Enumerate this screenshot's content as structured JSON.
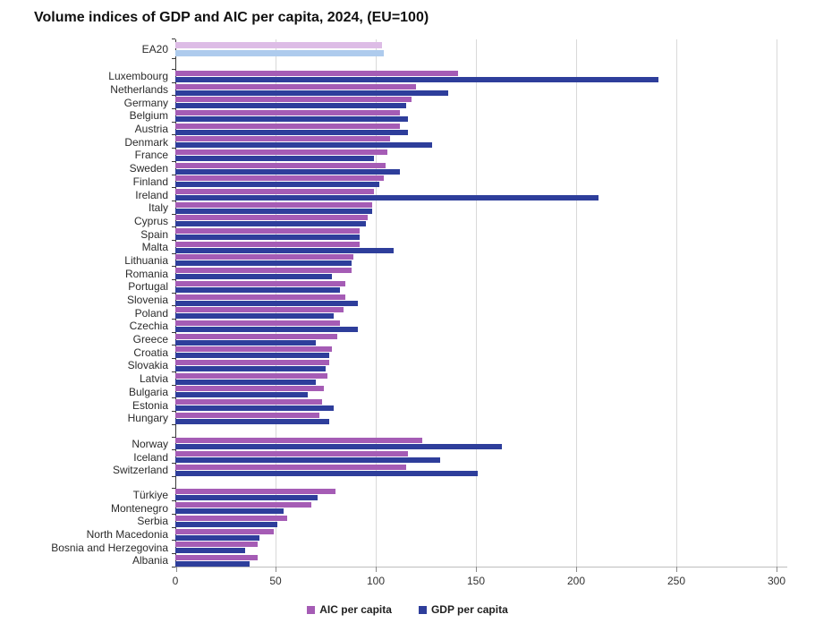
{
  "title": "Volume indices of GDP and AIC per capita, 2024, (EU=100)",
  "colors": {
    "aic": "#a55cb5",
    "gdp": "#2e3e9b",
    "ea20_aic": "#ddbce6",
    "ea20_gdp": "#aecbed",
    "gridline": "#d9d9d9",
    "axis": "#3a3a3a"
  },
  "legend": [
    {
      "label": "AIC per capita",
      "color": "#a55cb5"
    },
    {
      "label": "GDP per capita",
      "color": "#2e3e9b"
    }
  ],
  "chart_data": {
    "type": "bar",
    "orientation": "horizontal",
    "title": "Volume indices of GDP and AIC per capita, 2024, (EU=100)",
    "xlim": [
      0,
      300
    ],
    "xticks": [
      0,
      50,
      100,
      150,
      200,
      250,
      300
    ],
    "grid": "vertical-lines-at-ticks",
    "legend_position": "bottom-center",
    "series_names": [
      "AIC per capita",
      "GDP per capita"
    ],
    "groups": [
      {
        "name": "euro-area-aggregate",
        "rows": [
          {
            "label": "EA20",
            "aic": 103,
            "gdp": 104,
            "highlight": true
          }
        ]
      },
      {
        "name": "eu-countries",
        "rows": [
          {
            "label": "Luxembourg",
            "aic": 141,
            "gdp": 241
          },
          {
            "label": "Netherlands",
            "aic": 120,
            "gdp": 136
          },
          {
            "label": "Germany",
            "aic": 118,
            "gdp": 115
          },
          {
            "label": "Belgium",
            "aic": 112,
            "gdp": 116
          },
          {
            "label": "Austria",
            "aic": 112,
            "gdp": 116
          },
          {
            "label": "Denmark",
            "aic": 107,
            "gdp": 128
          },
          {
            "label": "France",
            "aic": 106,
            "gdp": 99
          },
          {
            "label": "Sweden",
            "aic": 105,
            "gdp": 112
          },
          {
            "label": "Finland",
            "aic": 104,
            "gdp": 102
          },
          {
            "label": "Ireland",
            "aic": 99,
            "gdp": 211
          },
          {
            "label": "Italy",
            "aic": 98,
            "gdp": 98
          },
          {
            "label": "Cyprus",
            "aic": 96,
            "gdp": 95
          },
          {
            "label": "Spain",
            "aic": 92,
            "gdp": 92
          },
          {
            "label": "Malta",
            "aic": 92,
            "gdp": 109
          },
          {
            "label": "Lithuania",
            "aic": 89,
            "gdp": 88
          },
          {
            "label": "Romania",
            "aic": 88,
            "gdp": 78
          },
          {
            "label": "Portugal",
            "aic": 85,
            "gdp": 82
          },
          {
            "label": "Slovenia",
            "aic": 85,
            "gdp": 91
          },
          {
            "label": "Poland",
            "aic": 84,
            "gdp": 79
          },
          {
            "label": "Czechia",
            "aic": 82,
            "gdp": 91
          },
          {
            "label": "Greece",
            "aic": 81,
            "gdp": 70
          },
          {
            "label": "Croatia",
            "aic": 78,
            "gdp": 77
          },
          {
            "label": "Slovakia",
            "aic": 77,
            "gdp": 75
          },
          {
            "label": "Latvia",
            "aic": 76,
            "gdp": 70
          },
          {
            "label": "Bulgaria",
            "aic": 74,
            "gdp": 66
          },
          {
            "label": "Estonia",
            "aic": 73,
            "gdp": 79
          },
          {
            "label": "Hungary",
            "aic": 72,
            "gdp": 77
          }
        ]
      },
      {
        "name": "efta-countries",
        "rows": [
          {
            "label": "Norway",
            "aic": 123,
            "gdp": 163
          },
          {
            "label": "Iceland",
            "aic": 116,
            "gdp": 132
          },
          {
            "label": "Switzerland",
            "aic": 115,
            "gdp": 151
          }
        ]
      },
      {
        "name": "candidate-countries",
        "rows": [
          {
            "label": "Türkiye",
            "aic": 80,
            "gdp": 71
          },
          {
            "label": "Montenegro",
            "aic": 68,
            "gdp": 54
          },
          {
            "label": "Serbia",
            "aic": 56,
            "gdp": 51
          },
          {
            "label": "North Macedonia",
            "aic": 49,
            "gdp": 42
          },
          {
            "label": "Bosnia and Herzegovina",
            "aic": 41,
            "gdp": 35
          },
          {
            "label": "Albania",
            "aic": 41,
            "gdp": 37
          }
        ]
      }
    ]
  }
}
